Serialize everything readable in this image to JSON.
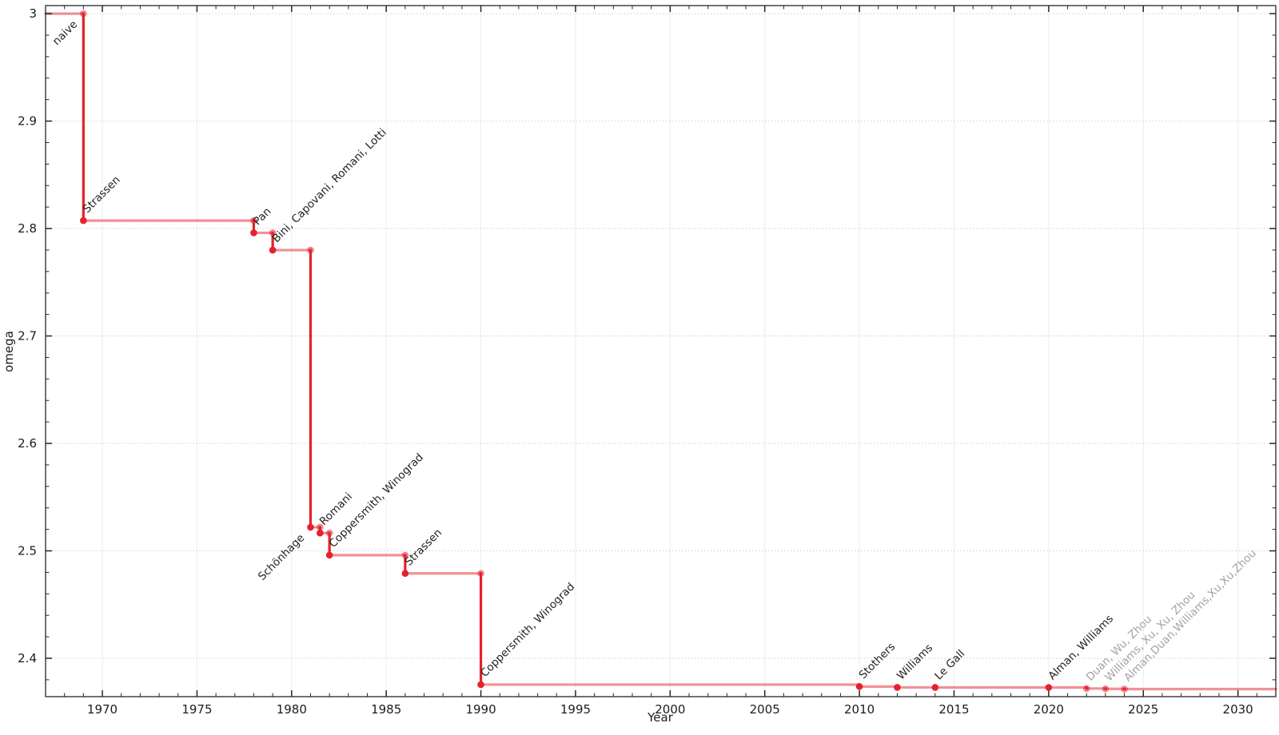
{
  "chart_data": {
    "type": "line",
    "subtype": "step-post-record-progression",
    "title": "",
    "xlabel": "Year",
    "ylabel": "omega",
    "xlim": [
      1967,
      2032
    ],
    "ylim": [
      2.3643,
      3.0075
    ],
    "grid": "major gridlines on (light dotted horizontals, light solid verticals), minor ticks on all four spines",
    "legend_position": "none",
    "x_ticks": {
      "values": [
        1970,
        1975,
        1980,
        1985,
        1990,
        1995,
        2000,
        2005,
        2010,
        2015,
        2020,
        2025,
        2030
      ],
      "labels": [
        "1970",
        "1975",
        "1980",
        "1985",
        "1990",
        "1995",
        "2000",
        "2005",
        "2010",
        "2015",
        "2020",
        "2025",
        "2030"
      ],
      "minor_step_years": 1
    },
    "y_ticks": {
      "values": [
        2.4,
        2.5,
        2.6,
        2.7,
        2.8,
        2.9,
        3.0
      ],
      "labels": [
        "2.4",
        "2.5",
        "2.6",
        "2.7",
        "2.8",
        "2.9",
        "3"
      ],
      "minor_step": 0.02
    },
    "start": {
      "label": "naive",
      "year": 1967,
      "omega": 3.0,
      "label_anchor": "below",
      "label_at_year": 1969
    },
    "points": [
      {
        "label": "Strassen",
        "year": 1969,
        "omega": 2.8074,
        "established": true,
        "label_anchor": "above"
      },
      {
        "label": "Pan",
        "year": 1978,
        "omega": 2.796,
        "established": true,
        "label_anchor": "above"
      },
      {
        "label": "Bini, Capovani, Romani, Lotti",
        "year": 1979,
        "omega": 2.7799,
        "established": true,
        "label_anchor": "above"
      },
      {
        "label": "Schönhage",
        "year": 1981,
        "omega": 2.522,
        "established": true,
        "label_anchor": "below"
      },
      {
        "label": "Romani",
        "year": 1981.5,
        "omega": 2.5166,
        "established": true,
        "label_anchor": "above"
      },
      {
        "label": "Coppersmith, Winograd",
        "year": 1982,
        "omega": 2.496,
        "established": true,
        "label_anchor": "above"
      },
      {
        "label": "Strassen",
        "year": 1986,
        "omega": 2.479,
        "established": true,
        "label_anchor": "above"
      },
      {
        "label": "Coppersmith, Winograd",
        "year": 1990,
        "omega": 2.3755,
        "established": true,
        "label_anchor": "above"
      },
      {
        "label": "Stothers",
        "year": 2010,
        "omega": 2.3737,
        "established": true,
        "label_anchor": "above"
      },
      {
        "label": "Williams",
        "year": 2012,
        "omega": 2.3729,
        "established": true,
        "label_anchor": "above"
      },
      {
        "label": "Le Gall",
        "year": 2014,
        "omega": 2.3728639,
        "established": true,
        "label_anchor": "above"
      },
      {
        "label": "Alman, Williams",
        "year": 2020,
        "omega": 2.3728596,
        "established": true,
        "label_anchor": "above"
      },
      {
        "label": "Duan, Wu, Zhou",
        "year": 2022,
        "omega": 2.371866,
        "established": false,
        "label_anchor": "above"
      },
      {
        "label": "Williams, Xu, Xu, Zhou",
        "year": 2023,
        "omega": 2.371552,
        "established": false,
        "label_anchor": "above"
      },
      {
        "label": "Alman,Duan,Williams,Xu,Xu,Zhou",
        "year": 2024,
        "omega": 2.371339,
        "established": false,
        "label_anchor": "above"
      }
    ],
    "colors": {
      "record_marker": "#e6212b",
      "drop_segment": "#e6212b",
      "level_segment": "rgba(230,33,43,0.5)",
      "corner_marker": "rgba(230,33,43,0.55)",
      "recent_marker": "rgba(230,33,43,0.55)",
      "record_label": "#1f1f1f",
      "recent_label": "#a3a3a3",
      "grid_h": "#cfcfcf",
      "grid_v": "#ececec",
      "axis": "#262626",
      "background": "#ffffff"
    }
  }
}
